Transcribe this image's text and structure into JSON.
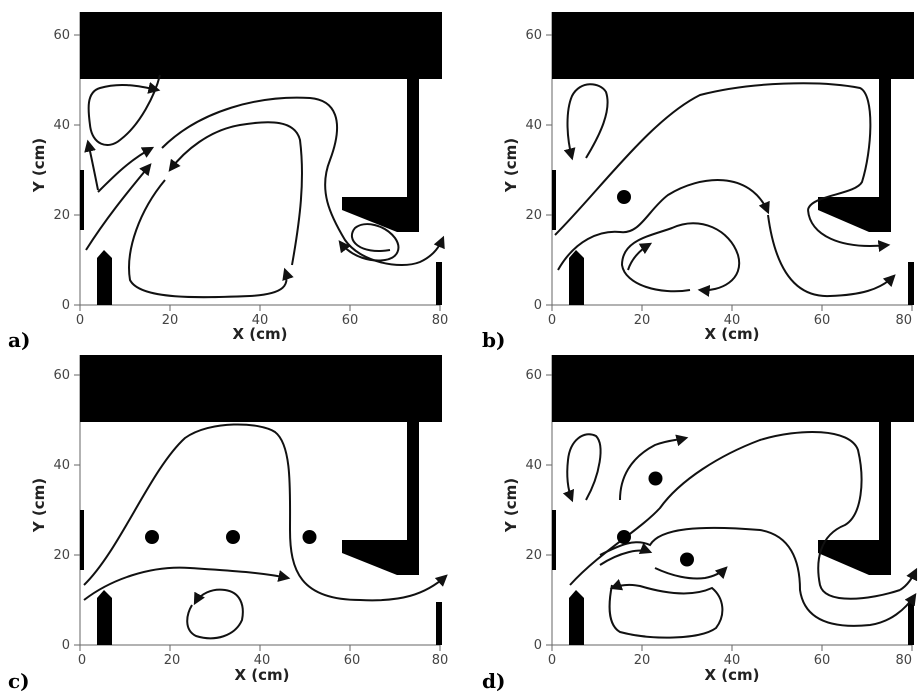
{
  "figure": {
    "axes": {
      "xlabel": "X (cm)",
      "ylabel": "Y (cm)",
      "xticks": [
        "0",
        "20",
        "40",
        "60",
        "80"
      ],
      "yticks": [
        "0",
        "20",
        "40",
        "60"
      ]
    },
    "panels": [
      {
        "id": "a",
        "label": "a)",
        "obstacles": []
      },
      {
        "id": "b",
        "label": "b)",
        "obstacles": [
          {
            "x": 16,
            "y": 24
          }
        ]
      },
      {
        "id": "c",
        "label": "c)",
        "obstacles": [
          {
            "x": 16,
            "y": 24
          },
          {
            "x": 34,
            "y": 24
          },
          {
            "x": 51,
            "y": 24
          }
        ]
      },
      {
        "id": "d",
        "label": "d)",
        "obstacles": [
          {
            "x": 16,
            "y": 24
          },
          {
            "x": 23,
            "y": 37
          },
          {
            "x": 30,
            "y": 19
          }
        ]
      }
    ]
  }
}
